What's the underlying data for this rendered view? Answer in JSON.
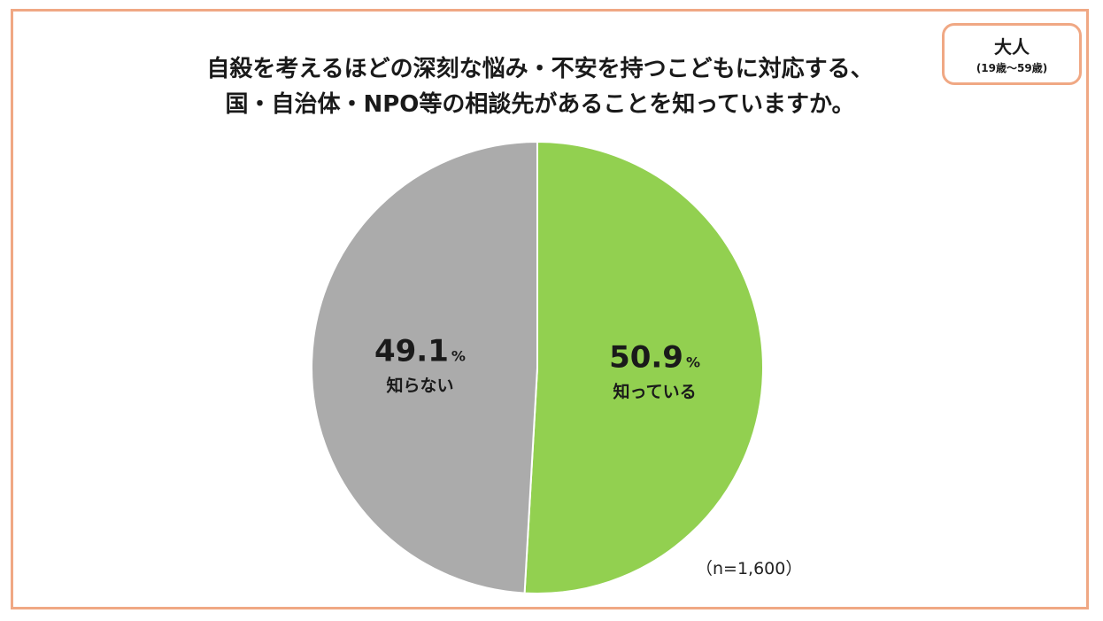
{
  "title_lines": [
    "自殺を考えるほどの深刻な悩み・不安を持つこどもに対応する、",
    "国・自治体・NPO等の相談先があることを知っていますか。"
  ],
  "badge": {
    "main": "大人",
    "sub": "(19歳～59歳)"
  },
  "sample_note": "（n=1,600）",
  "colors": {
    "frame": "#f0a884",
    "know": "#92d050",
    "dont_know": "#ababab"
  },
  "chart_data": {
    "type": "pie",
    "title": "自殺を考えるほどの深刻な悩み・不安を持つこどもに対応する、国・自治体・NPO等の相談先があることを知っていますか。",
    "unit": "%",
    "start": "12 o'clock, clockwise",
    "slices": [
      {
        "label": "知っている",
        "value": 50.9,
        "value_text": "50.9",
        "color": "#92d050"
      },
      {
        "label": "知らない",
        "value": 49.1,
        "value_text": "49.1",
        "color": "#ababab"
      }
    ]
  }
}
